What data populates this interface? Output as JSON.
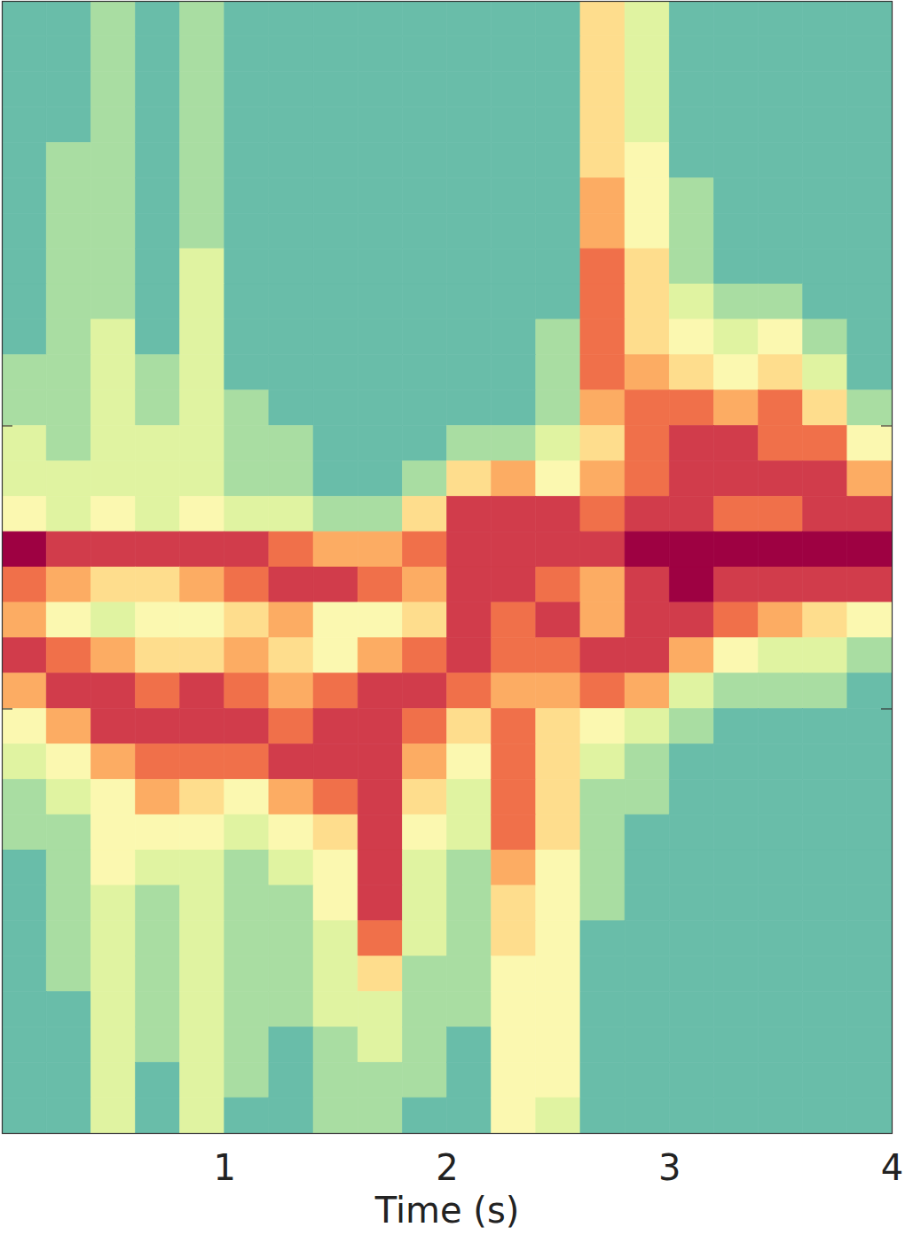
{
  "chart_data": {
    "type": "heatmap",
    "x_label": "Time (s)",
    "xlim": [
      0,
      4
    ],
    "xticks": [
      1,
      2,
      3,
      4
    ],
    "ylim": [
      -4,
      4
    ],
    "yticks": [
      -1,
      1
    ],
    "tick_labels": "x",
    "color": "spectral",
    "zlim": [
      0,
      10
    ],
    "x_bins": [
      0,
      0.2,
      0.4,
      0.6,
      0.8,
      1.0,
      1.2,
      1.4,
      1.6,
      1.8,
      2.0,
      2.2,
      2.4,
      2.6,
      2.8,
      3.0,
      3.2,
      3.4,
      3.6,
      3.8,
      4.0
    ],
    "y_bins": [
      4,
      3.75,
      3.5,
      3.25,
      3,
      2.75,
      2.5,
      2.25,
      2,
      1.75,
      1.5,
      1.25,
      1,
      0.75,
      0.5,
      0.25,
      0,
      -0.25,
      -0.5,
      -0.75,
      -1,
      -1.25,
      -1.5,
      -1.75,
      -2,
      -2.25,
      -2.5,
      -2.75,
      -3,
      -3.25,
      -3.5,
      -3.75,
      -4
    ],
    "values": [
      [
        2,
        2,
        3,
        2,
        3,
        2,
        2,
        2,
        2,
        2,
        2,
        2,
        2,
        6,
        4,
        2,
        2,
        2,
        2,
        2
      ],
      [
        2,
        2,
        3,
        2,
        3,
        2,
        2,
        2,
        2,
        2,
        2,
        2,
        2,
        6,
        4,
        2,
        2,
        2,
        2,
        2
      ],
      [
        2,
        2,
        3,
        2,
        3,
        2,
        2,
        2,
        2,
        2,
        2,
        2,
        2,
        6,
        4,
        2,
        2,
        2,
        2,
        2
      ],
      [
        2,
        2,
        3,
        2,
        3,
        2,
        2,
        2,
        2,
        2,
        2,
        2,
        2,
        6,
        4,
        2,
        2,
        2,
        2,
        2
      ],
      [
        2,
        3,
        3,
        2,
        3,
        2,
        2,
        2,
        2,
        2,
        2,
        2,
        2,
        6,
        5,
        2,
        2,
        2,
        2,
        2
      ],
      [
        2,
        3,
        3,
        2,
        3,
        2,
        2,
        2,
        2,
        2,
        2,
        2,
        2,
        7,
        5,
        3,
        2,
        2,
        2,
        2
      ],
      [
        2,
        3,
        3,
        2,
        3,
        2,
        2,
        2,
        2,
        2,
        2,
        2,
        2,
        7,
        5,
        3,
        2,
        2,
        2,
        2
      ],
      [
        2,
        3,
        3,
        2,
        4,
        2,
        2,
        2,
        2,
        2,
        2,
        2,
        2,
        8,
        6,
        3,
        2,
        2,
        2,
        2
      ],
      [
        2,
        3,
        3,
        2,
        4,
        2,
        2,
        2,
        2,
        2,
        2,
        2,
        2,
        8,
        6,
        4,
        3,
        3,
        2,
        2
      ],
      [
        2,
        3,
        4,
        2,
        4,
        2,
        2,
        2,
        2,
        2,
        2,
        2,
        3,
        8,
        6,
        5,
        4,
        5,
        3,
        2
      ],
      [
        3,
        3,
        4,
        3,
        4,
        2,
        2,
        2,
        2,
        2,
        2,
        2,
        3,
        8,
        7,
        6,
        5,
        6,
        4,
        2
      ],
      [
        3,
        3,
        4,
        3,
        4,
        3,
        2,
        2,
        2,
        2,
        2,
        2,
        3,
        7,
        8,
        8,
        7,
        8,
        6,
        3
      ],
      [
        4,
        3,
        4,
        4,
        4,
        3,
        3,
        2,
        2,
        2,
        3,
        3,
        4,
        6,
        8,
        9,
        9,
        8,
        8,
        5
      ],
      [
        4,
        4,
        4,
        4,
        4,
        3,
        3,
        2,
        2,
        3,
        6,
        7,
        5,
        7,
        8,
        9,
        9,
        9,
        9,
        7
      ],
      [
        5,
        4,
        5,
        4,
        5,
        4,
        4,
        3,
        3,
        6,
        9,
        9,
        9,
        8,
        9,
        9,
        8,
        8,
        9,
        9
      ],
      [
        10,
        9,
        9,
        9,
        9,
        9,
        8,
        7,
        7,
        8,
        9,
        9,
        9,
        9,
        10,
        10,
        10,
        10,
        10,
        10
      ],
      [
        8,
        7,
        6,
        6,
        7,
        8,
        9,
        9,
        8,
        7,
        9,
        9,
        8,
        7,
        9,
        10,
        9,
        9,
        9,
        9
      ],
      [
        7,
        5,
        4,
        5,
        5,
        6,
        7,
        5,
        5,
        6,
        9,
        8,
        9,
        7,
        9,
        9,
        8,
        7,
        6,
        5
      ],
      [
        9,
        8,
        7,
        6,
        6,
        7,
        6,
        5,
        7,
        8,
        9,
        8,
        8,
        9,
        9,
        7,
        5,
        4,
        4,
        3
      ],
      [
        7,
        9,
        9,
        8,
        9,
        8,
        7,
        8,
        9,
        9,
        8,
        7,
        7,
        8,
        7,
        4,
        3,
        3,
        3,
        2
      ],
      [
        5,
        7,
        9,
        9,
        9,
        9,
        8,
        9,
        9,
        8,
        6,
        8,
        6,
        5,
        4,
        3,
        2,
        2,
        2,
        2
      ],
      [
        4,
        5,
        7,
        8,
        8,
        8,
        9,
        9,
        9,
        7,
        5,
        8,
        6,
        4,
        3,
        2,
        2,
        2,
        2,
        2
      ],
      [
        3,
        4,
        5,
        7,
        6,
        5,
        7,
        8,
        9,
        6,
        4,
        8,
        6,
        3,
        3,
        2,
        2,
        2,
        2,
        2
      ],
      [
        3,
        3,
        5,
        5,
        5,
        4,
        5,
        6,
        9,
        5,
        4,
        8,
        6,
        3,
        2,
        2,
        2,
        2,
        2,
        2
      ],
      [
        2,
        3,
        5,
        4,
        4,
        3,
        4,
        5,
        9,
        4,
        3,
        7,
        5,
        3,
        2,
        2,
        2,
        2,
        2,
        2
      ],
      [
        2,
        3,
        4,
        3,
        4,
        3,
        3,
        5,
        9,
        4,
        3,
        6,
        5,
        3,
        2,
        2,
        2,
        2,
        2,
        2
      ],
      [
        2,
        3,
        4,
        3,
        4,
        3,
        3,
        4,
        8,
        4,
        3,
        6,
        5,
        2,
        2,
        2,
        2,
        2,
        2,
        2
      ],
      [
        2,
        3,
        4,
        3,
        4,
        3,
        3,
        4,
        6,
        3,
        3,
        5,
        5,
        2,
        2,
        2,
        2,
        2,
        2,
        2
      ],
      [
        2,
        2,
        4,
        3,
        4,
        3,
        3,
        4,
        4,
        3,
        3,
        5,
        5,
        2,
        2,
        2,
        2,
        2,
        2,
        2
      ],
      [
        2,
        2,
        4,
        3,
        4,
        3,
        2,
        3,
        4,
        3,
        2,
        5,
        5,
        2,
        2,
        2,
        2,
        2,
        2,
        2
      ],
      [
        2,
        2,
        4,
        2,
        4,
        3,
        2,
        3,
        3,
        3,
        2,
        5,
        5,
        2,
        2,
        2,
        2,
        2,
        2,
        2
      ],
      [
        2,
        2,
        4,
        2,
        4,
        2,
        2,
        3,
        3,
        2,
        2,
        5,
        4,
        2,
        2,
        2,
        2,
        2,
        2,
        2
      ]
    ]
  }
}
